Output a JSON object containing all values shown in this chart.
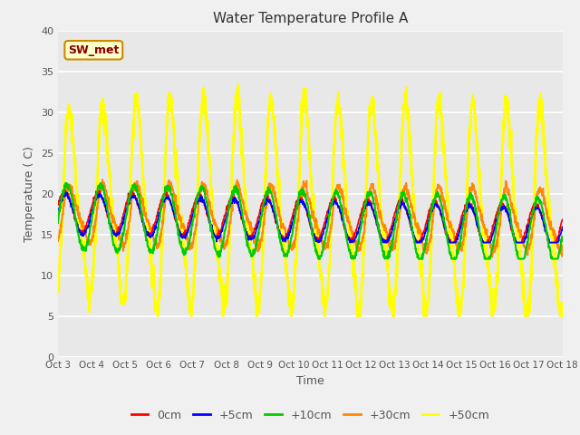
{
  "title": "Water Temperature Profile A",
  "xlabel": "Time",
  "ylabel": "Temperature ( C)",
  "xlim": [
    0,
    15
  ],
  "ylim": [
    0,
    40
  ],
  "yticks": [
    0,
    5,
    10,
    15,
    20,
    25,
    30,
    35,
    40
  ],
  "xtick_labels": [
    "Oct 3",
    "Oct 4",
    "Oct 5",
    "Oct 6",
    "Oct 7",
    "Oct 8",
    "Oct 9",
    "Oct 10",
    "Oct 11",
    "Oct 12",
    "Oct 13",
    "Oct 14",
    "Oct 15",
    "Oct 16",
    "Oct 17",
    "Oct 18"
  ],
  "figure_facecolor": "#f0f0f0",
  "plot_bg_color": "#e8e8e8",
  "legend_entries": [
    "0cm",
    "+5cm",
    "+10cm",
    "+30cm",
    "+50cm"
  ],
  "legend_colors": [
    "#ff0000",
    "#0000ff",
    "#00cc00",
    "#ff8800",
    "#ffff00"
  ],
  "annotation_text": "SW_met",
  "annotation_bg": "#ffffcc",
  "annotation_border": "#cc8800",
  "annotation_text_color": "#880000",
  "series_colors": [
    "#ff0000",
    "#0000ff",
    "#00cc00",
    "#ff8800",
    "#ffff00"
  ],
  "series_linewidths": [
    1.2,
    1.2,
    1.5,
    1.5,
    2.0
  ],
  "title_color": "#333333",
  "tick_color": "#555555"
}
